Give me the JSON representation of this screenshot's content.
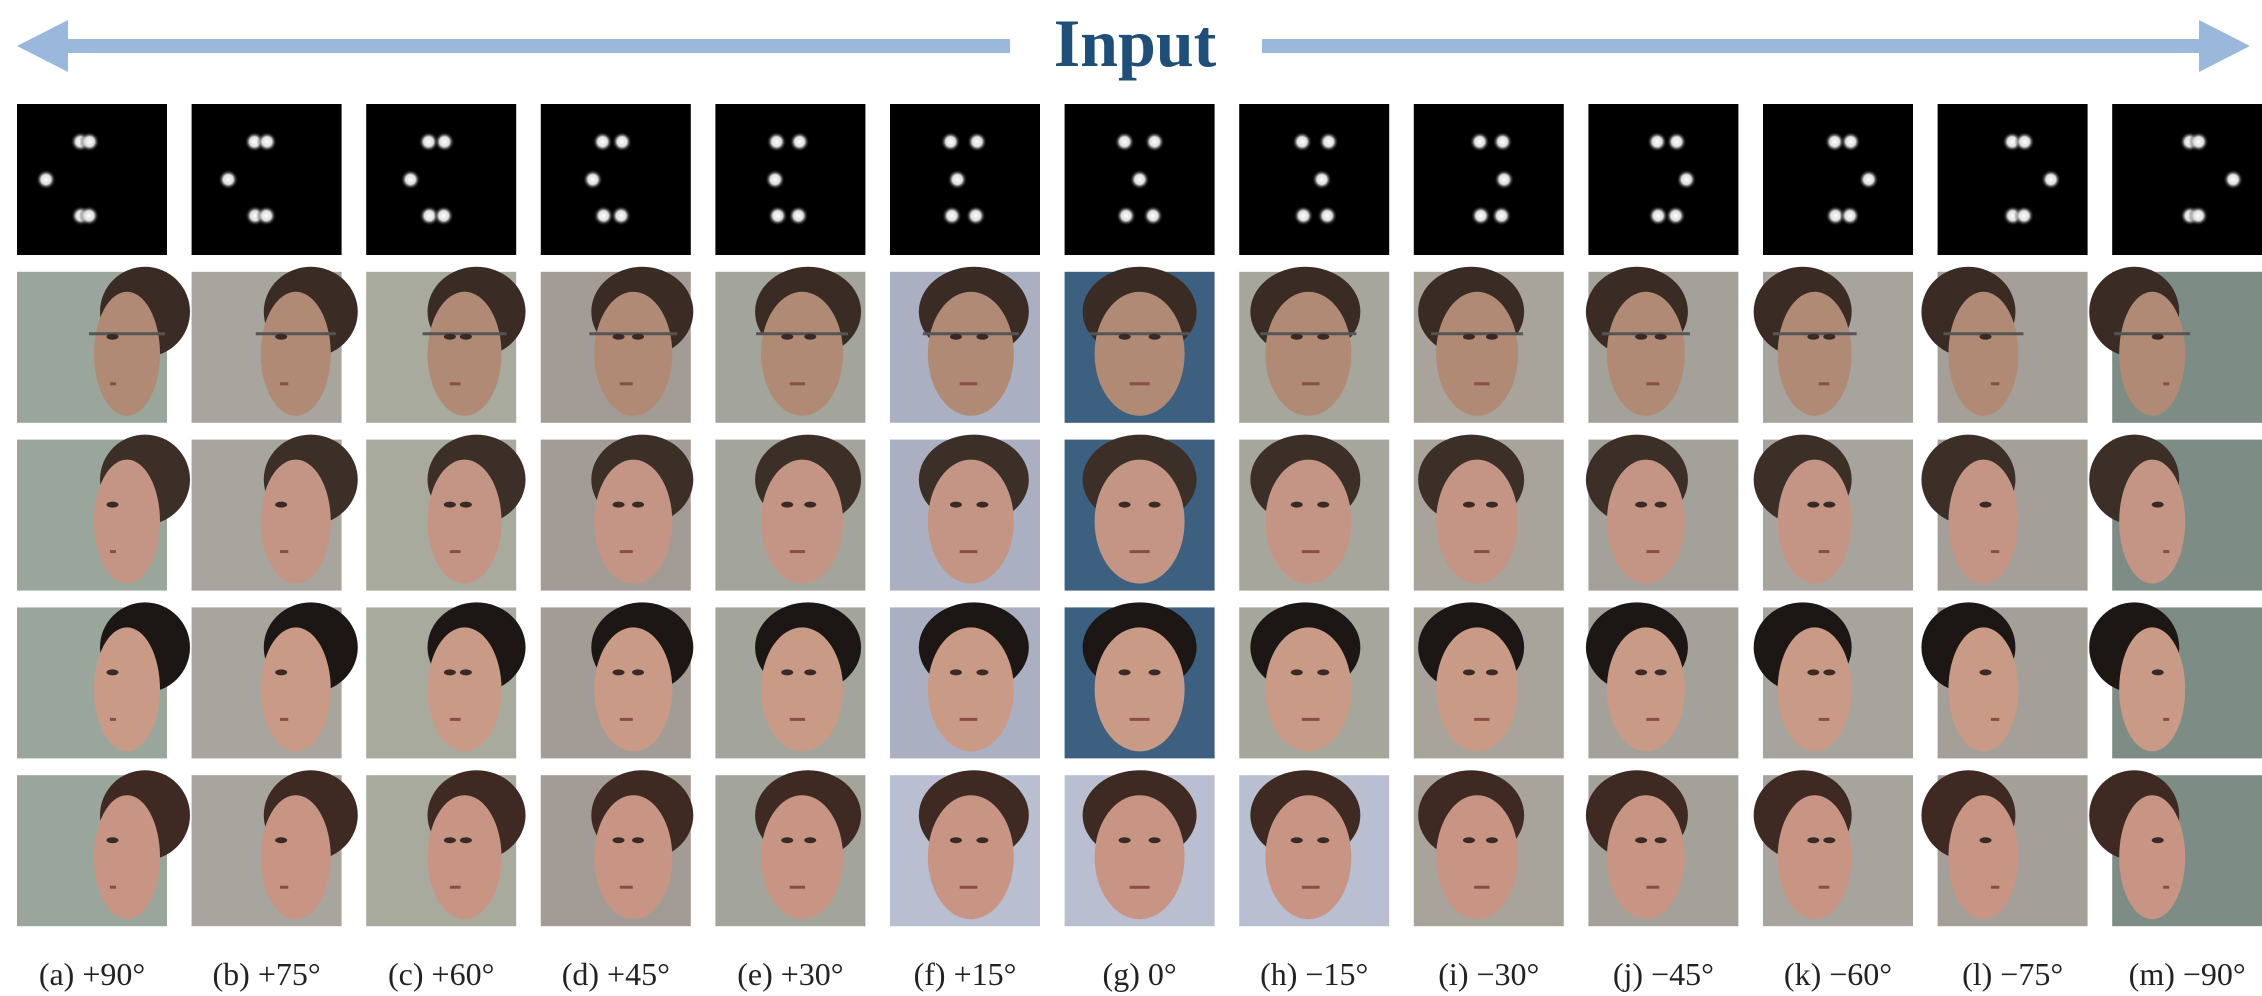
{
  "header": {
    "title": "Input"
  },
  "captions": [
    "(a) +90°",
    "(b) +75°",
    "(c) +60°",
    "(d) +45°",
    "(e) +30°",
    "(f) +15°",
    "(g) 0°",
    "(h) −15°",
    "(i) −30°",
    "(j) −45°",
    "(k) −60°",
    "(l) −75°",
    "(m) −90°"
  ]
}
